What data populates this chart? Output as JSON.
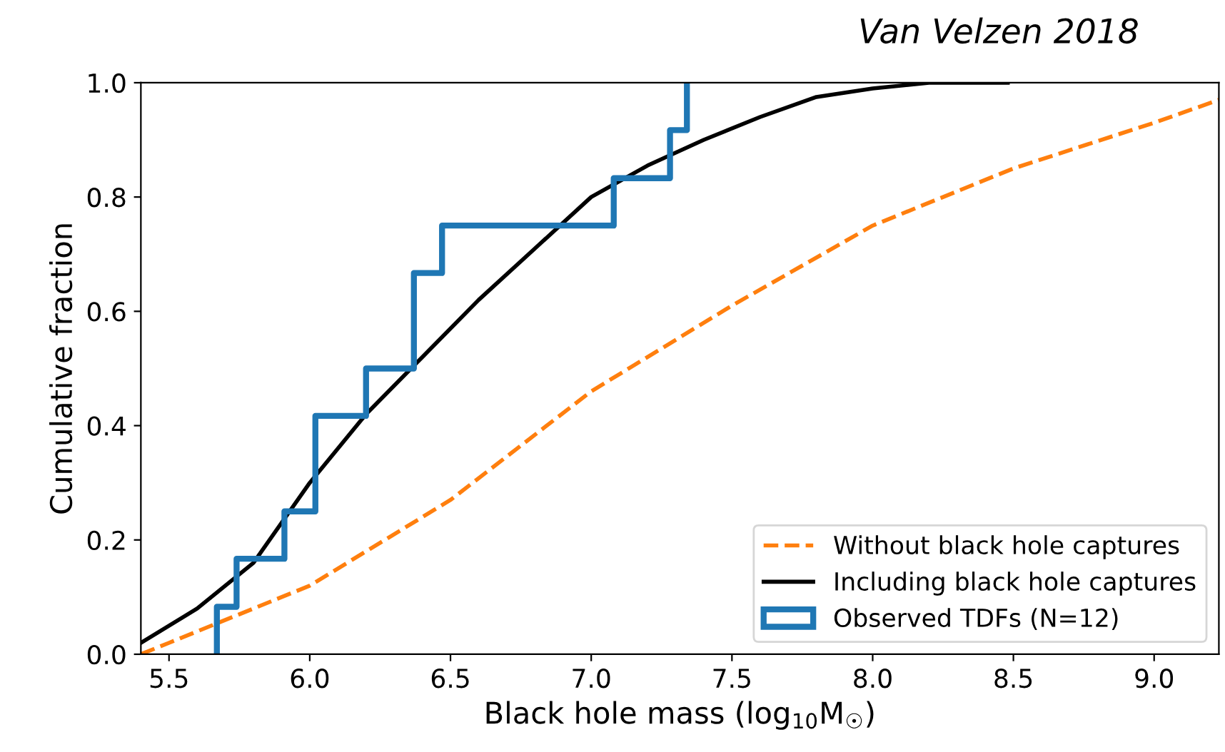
{
  "chart_data": {
    "type": "line",
    "xlabel": "Black hole mass (log$_{10}$M$_{☉}$)",
    "ylabel": "Cumulative fraction",
    "annotations": [
      "Van Velzen 2018"
    ],
    "xlim": [
      5.4,
      9.23
    ],
    "ylim": [
      0,
      1
    ],
    "xticks": [
      {
        "value": 5.5,
        "label": "5.5"
      },
      {
        "value": 6,
        "label": "6.0"
      },
      {
        "value": 6.5,
        "label": "6.5"
      },
      {
        "value": 7,
        "label": "7.0"
      },
      {
        "value": 7.5,
        "label": "7.5"
      },
      {
        "value": 8,
        "label": "8.0"
      },
      {
        "value": 8.5,
        "label": "8.5"
      },
      {
        "value": 9,
        "label": "9.0"
      }
    ],
    "yticks": [
      {
        "value": 0,
        "label": "0.0"
      },
      {
        "value": 0.2,
        "label": "0.2"
      },
      {
        "value": 0.4,
        "label": "0.4"
      },
      {
        "value": 0.6,
        "label": "0.6"
      },
      {
        "value": 0.8,
        "label": "0.8"
      },
      {
        "value": 1,
        "label": "1.0"
      }
    ],
    "grid": false,
    "legend": "bottom right",
    "series": [
      {
        "name": "Without black hole captures",
        "color": "#ff7f0e",
        "line_style": "dashed",
        "x": [
          5.4,
          5.5,
          6.0,
          6.5,
          7.0,
          7.5,
          8.0,
          8.5,
          9.0,
          9.23
        ],
        "values": [
          0.0,
          0.02,
          0.12,
          0.27,
          0.46,
          0.61,
          0.75,
          0.85,
          0.93,
          0.97
        ]
      },
      {
        "name": "Including black hole captures",
        "color": "#000000",
        "line_style": "solid",
        "x": [
          5.4,
          5.6,
          5.8,
          6.0,
          6.2,
          6.4,
          6.6,
          6.8,
          7.0,
          7.2,
          7.4,
          7.6,
          7.8,
          8.0,
          8.2,
          8.48
        ],
        "values": [
          0.02,
          0.08,
          0.16,
          0.3,
          0.42,
          0.52,
          0.62,
          0.71,
          0.8,
          0.855,
          0.9,
          0.94,
          0.975,
          0.99,
          1.0,
          1.0
        ]
      },
      {
        "name": "Observed TDFs (N=12)",
        "type": "step",
        "color": "#1f77b4",
        "x": [
          5.67,
          5.67,
          5.74,
          5.91,
          6.02,
          6.2,
          6.37,
          6.47,
          7.08,
          7.28,
          7.34
        ],
        "values": [
          0,
          0.083,
          0.167,
          0.25,
          0.417,
          0.5,
          0.667,
          0.75,
          0.833,
          0.917,
          1.0
        ]
      }
    ]
  }
}
